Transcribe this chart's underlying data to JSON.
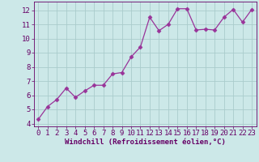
{
  "x": [
    0,
    1,
    2,
    3,
    4,
    5,
    6,
    7,
    8,
    9,
    10,
    11,
    12,
    13,
    14,
    15,
    16,
    17,
    18,
    19,
    20,
    21,
    22,
    23
  ],
  "y": [
    4.3,
    5.2,
    5.7,
    6.5,
    5.85,
    6.3,
    6.7,
    6.7,
    7.5,
    7.6,
    8.7,
    9.4,
    11.5,
    10.55,
    11.0,
    12.1,
    12.1,
    10.6,
    10.65,
    10.6,
    11.5,
    12.05,
    11.15,
    12.05
  ],
  "line_color": "#993399",
  "marker": "D",
  "marker_size": 2.5,
  "background_color": "#cce8e8",
  "grid_color": "#aacccc",
  "xlabel": "Windchill (Refroidissement éolien,°C)",
  "xlabel_color": "#660066",
  "tick_color": "#660066",
  "ylim": [
    3.8,
    12.6
  ],
  "yticks": [
    4,
    5,
    6,
    7,
    8,
    9,
    10,
    11,
    12
  ],
  "xlim": [
    -0.5,
    23.5
  ],
  "xticks": [
    0,
    1,
    2,
    3,
    4,
    5,
    6,
    7,
    8,
    9,
    10,
    11,
    12,
    13,
    14,
    15,
    16,
    17,
    18,
    19,
    20,
    21,
    22,
    23
  ],
  "xlabel_fontsize": 6.5,
  "tick_fontsize": 6.5
}
